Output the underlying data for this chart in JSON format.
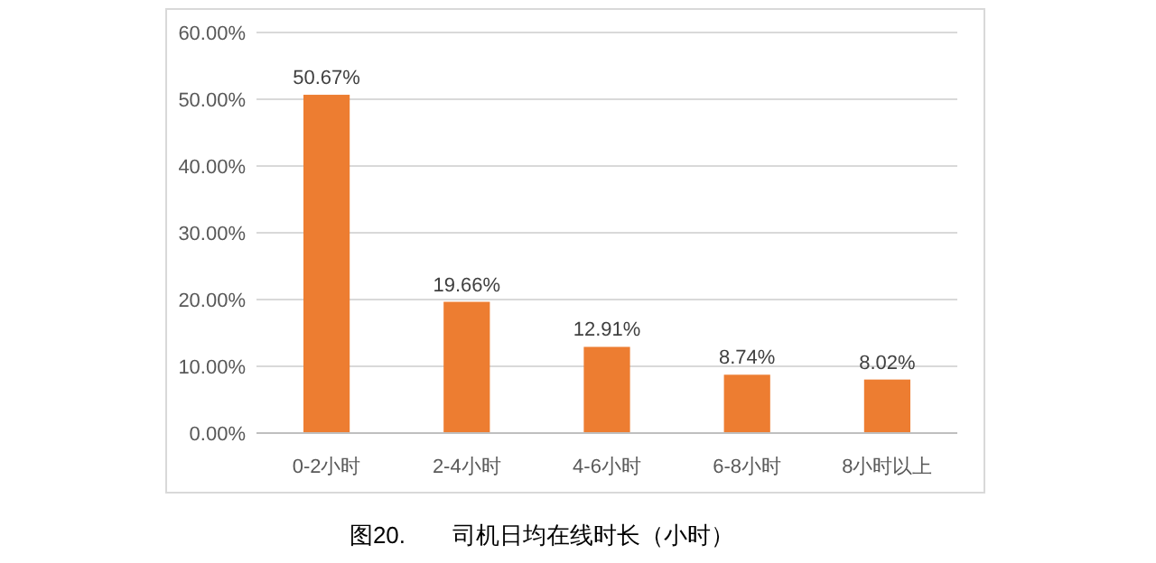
{
  "chart_data": {
    "type": "bar",
    "title": "图20.　　司机日均在线时长（小时）",
    "categories": [
      "0-2小时",
      "2-4小时",
      "4-6小时",
      "6-8小时",
      "8小时以上"
    ],
    "values": [
      50.67,
      19.66,
      12.91,
      8.74,
      8.02
    ],
    "value_labels": [
      "50.67%",
      "19.66%",
      "12.91%",
      "8.74%",
      "8.02%"
    ],
    "color": "#ed7d31",
    "ylim": [
      0,
      60
    ],
    "yticks": [
      {
        "value": 0,
        "label": "0.00%"
      },
      {
        "value": 10,
        "label": "10.00%"
      },
      {
        "value": 20,
        "label": "20.00%"
      },
      {
        "value": 30,
        "label": "30.00%"
      },
      {
        "value": 40,
        "label": "40.00%"
      },
      {
        "value": 50,
        "label": "50.00%"
      },
      {
        "value": 60,
        "label": "60.00%"
      }
    ],
    "grid": "y"
  }
}
